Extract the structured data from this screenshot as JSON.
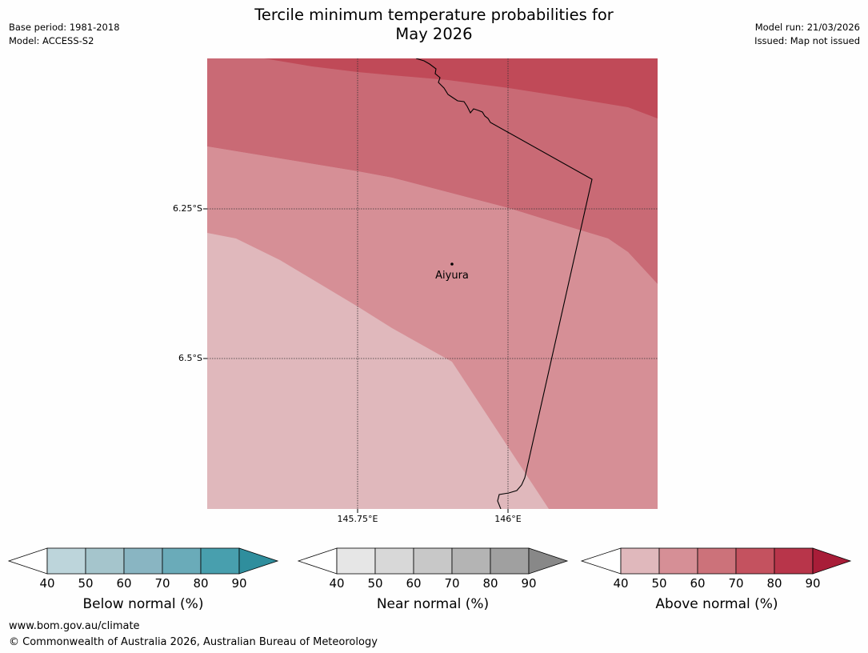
{
  "header": {
    "title_line1": "Tercile minimum temperature probabilities for",
    "title_line2": "May 2026",
    "base_period": "Base period: 1981-2018",
    "model": "Model: ACCESS-S2",
    "model_run": "Model run: 21/03/2026",
    "issued": "Issued: Map not issued"
  },
  "map": {
    "lat_labels": [
      "6.25°S",
      "6.5°S"
    ],
    "lon_labels": [
      "145.75°E",
      "146°E"
    ],
    "place": "Aiyura",
    "band_colors": {
      "p80_90": "#c04a58",
      "p70_80": "#c96a75",
      "p60_70": "#d68f96",
      "p50_60": "#e0b8bc"
    }
  },
  "colorbars": [
    {
      "label": "Below normal (%)",
      "ticks": [
        "40",
        "50",
        "60",
        "70",
        "80",
        "90"
      ],
      "colors": [
        "#bdd5db",
        "#a5c5cc",
        "#89b5c2",
        "#6aabb9",
        "#489fae"
      ],
      "extend_color": "#2f8e9d"
    },
    {
      "label": "Near normal (%)",
      "ticks": [
        "40",
        "50",
        "60",
        "70",
        "80",
        "90"
      ],
      "colors": [
        "#e6e6e6",
        "#d8d8d8",
        "#c8c8c8",
        "#b4b4b4",
        "#a0a0a0"
      ],
      "extend_color": "#888888"
    },
    {
      "label": "Above normal (%)",
      "ticks": [
        "40",
        "50",
        "60",
        "70",
        "80",
        "90"
      ],
      "colors": [
        "#e0b8bc",
        "#d68f96",
        "#cc727a",
        "#c4525f",
        "#b8354a"
      ],
      "extend_color": "#a81d38"
    }
  ],
  "footer": {
    "url": "www.bom.gov.au/climate",
    "copyright": "© Commonwealth of Australia 2026, Australian Bureau of Meteorology"
  }
}
